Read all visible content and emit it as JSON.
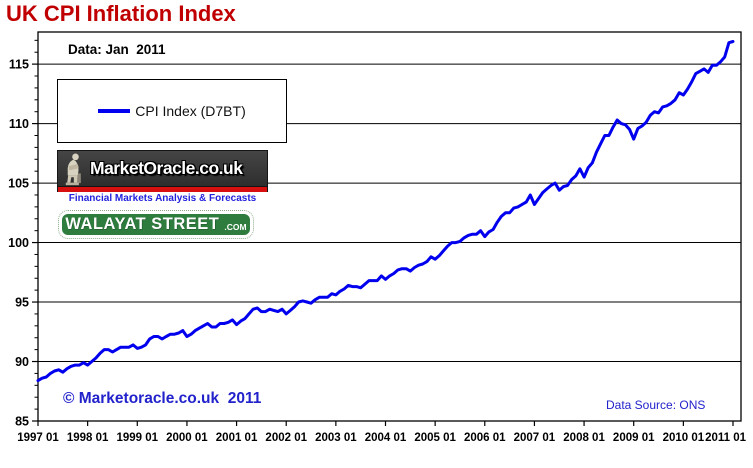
{
  "title": "UK CPI Inflation Index",
  "annotations": {
    "data_label": "Data: Jan  2011",
    "copyright": "© Marketoracle.co.uk  2011",
    "source": "Data Source: ONS"
  },
  "legend": {
    "label": "CPI Index (D7BT)"
  },
  "branding": {
    "marketoracle_name": "MarketOracle.co.uk",
    "marketoracle_tagline": "Financial Markets Analysis & Forecasts",
    "walayat_name": "WALAYAT STREET",
    "walayat_tld": ".COM"
  },
  "colors": {
    "title_red": "#C00000",
    "line_blue": "#0000EE",
    "annotation_blue": "#2222CC",
    "logo_stripe_red": "#D80F0F",
    "walayat_green": "#2E7D3E"
  },
  "chart_data": {
    "type": "line",
    "title": "UK CPI Inflation Index",
    "xlabel": "",
    "ylabel": "",
    "grid": "horizontal-major",
    "legend_position": "upper-left",
    "x_start": "1997-01",
    "x_end": "2011-01",
    "frequency": "monthly",
    "x_tick_labels": [
      "1997 01",
      "1998 01",
      "1999 01",
      "2000 01",
      "2001 01",
      "2002 01",
      "2003 01",
      "2004 01",
      "2005 01",
      "2006 01",
      "2007 01",
      "2008 01",
      "2009 01",
      "2010 01",
      "2011 01"
    ],
    "y_ticks": [
      85,
      90,
      95,
      100,
      105,
      110,
      115
    ],
    "ylim": [
      85,
      117.7
    ],
    "series": [
      {
        "name": "CPI Index (D7BT)",
        "color": "#0000EE",
        "values": [
          88.4,
          88.6,
          88.7,
          89.0,
          89.2,
          89.3,
          89.1,
          89.4,
          89.6,
          89.7,
          89.7,
          89.9,
          89.7,
          90.0,
          90.3,
          90.7,
          91.0,
          91.0,
          90.8,
          91.0,
          91.2,
          91.2,
          91.2,
          91.4,
          91.1,
          91.2,
          91.4,
          91.9,
          92.1,
          92.1,
          91.9,
          92.1,
          92.3,
          92.3,
          92.4,
          92.6,
          92.1,
          92.3,
          92.6,
          92.8,
          93.0,
          93.2,
          92.9,
          92.9,
          93.2,
          93.2,
          93.3,
          93.5,
          93.1,
          93.4,
          93.6,
          94.0,
          94.4,
          94.5,
          94.2,
          94.2,
          94.4,
          94.3,
          94.2,
          94.4,
          94.0,
          94.3,
          94.6,
          95.0,
          95.1,
          95.0,
          94.9,
          95.2,
          95.4,
          95.4,
          95.4,
          95.7,
          95.6,
          95.9,
          96.1,
          96.4,
          96.3,
          96.3,
          96.2,
          96.5,
          96.8,
          96.8,
          96.8,
          97.2,
          96.9,
          97.2,
          97.4,
          97.7,
          97.8,
          97.8,
          97.6,
          97.9,
          98.1,
          98.2,
          98.4,
          98.8,
          98.6,
          98.9,
          99.3,
          99.7,
          100.0,
          100.0,
          100.1,
          100.4,
          100.6,
          100.7,
          100.7,
          101.0,
          100.5,
          100.9,
          101.1,
          101.7,
          102.2,
          102.5,
          102.5,
          102.9,
          103.0,
          103.2,
          103.4,
          104.0,
          103.2,
          103.7,
          104.2,
          104.5,
          104.8,
          105.0,
          104.4,
          104.7,
          104.8,
          105.3,
          105.6,
          106.2,
          105.5,
          106.3,
          106.7,
          107.6,
          108.3,
          109.0,
          109.0,
          109.7,
          110.3,
          110.0,
          109.9,
          109.5,
          108.7,
          109.6,
          109.8,
          110.1,
          110.7,
          111.0,
          110.9,
          111.4,
          111.5,
          111.7,
          112.0,
          112.6,
          112.4,
          112.9,
          113.5,
          114.2,
          114.4,
          114.6,
          114.3,
          114.9,
          114.9,
          115.2,
          115.6,
          116.8,
          116.9
        ]
      }
    ]
  }
}
